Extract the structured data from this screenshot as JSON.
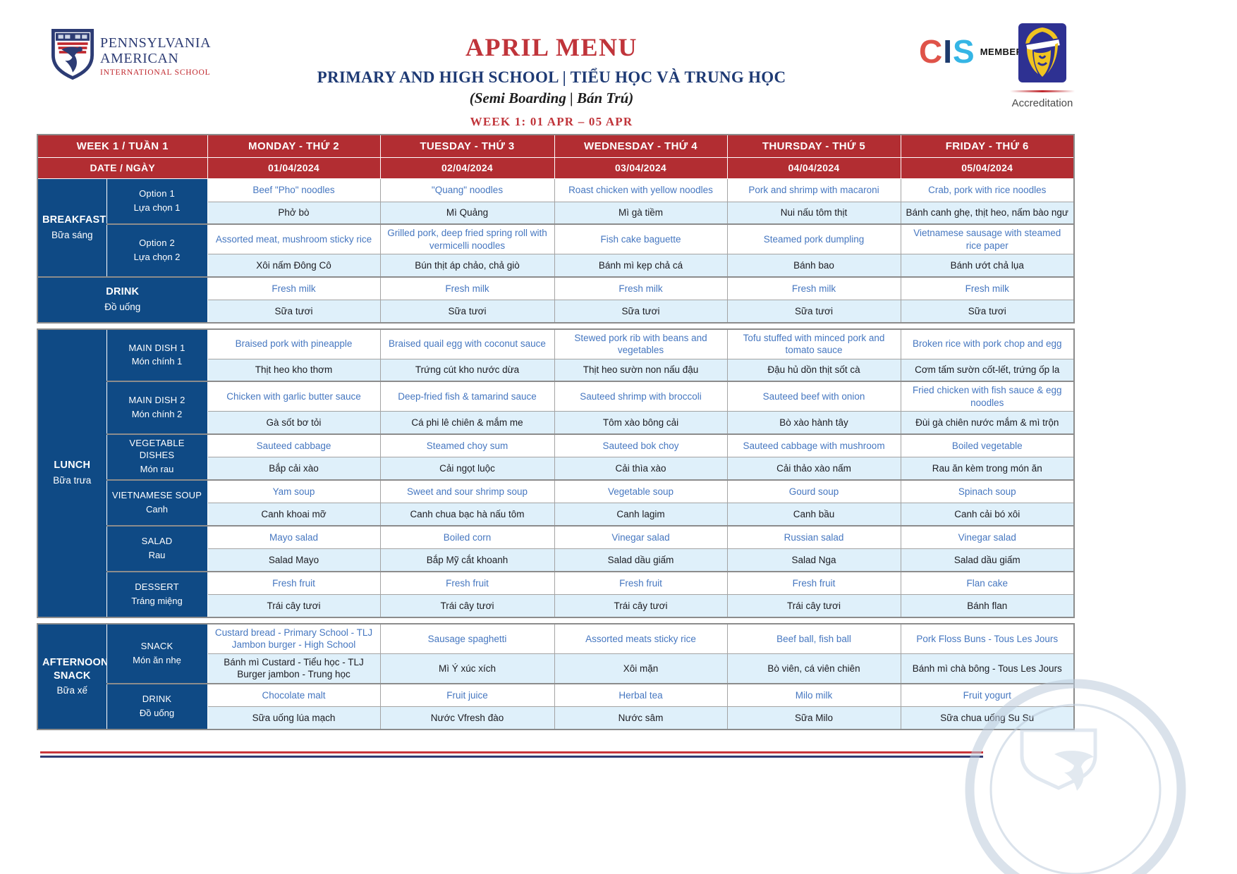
{
  "colors": {
    "red_header": "#b22d32",
    "red_title": "#c0343a",
    "navy": "#0f4a85",
    "dish_blue": "#4677c0",
    "row_bg": "#dff0fa",
    "accent_yellow": "#f1b434",
    "cis_teal": "#35b5e5",
    "cis_red": "#df5349",
    "logo_navy": "#2d3c74"
  },
  "header": {
    "school_name_line1": "PENNSYLVANIA",
    "school_name_line2": "AMERICAN",
    "school_name_line3": "INTERNATIONAL SCHOOL",
    "title": "APRIL MENU",
    "subtitle": "PRIMARY AND HIGH SCHOOL | TIỂU HỌC VÀ TRUNG HỌC",
    "boarding": "(Semi Boarding | Bán Trú)",
    "week_range": "WEEK 1: 01 APR – 05 APR",
    "cis": {
      "c": "C",
      "i": "I",
      "s": "S",
      "member": "MEMBER",
      "paren": ")"
    },
    "accreditation_label": "Accreditation"
  },
  "menu": {
    "corner": "WEEK 1 / TUẦN 1",
    "date_label": "DATE / NGÀY",
    "days": [
      "MONDAY - THỨ 2",
      "TUESDAY - THỨ 3",
      "WEDNESDAY - THỨ 4",
      "THURSDAY - THỨ 5",
      "FRIDAY - THỨ 6"
    ],
    "dates": [
      "01/04/2024",
      "02/04/2024",
      "03/04/2024",
      "04/04/2024",
      "05/04/2024"
    ],
    "blocks": [
      {
        "section_en": "BREAKFAST",
        "section_vn": "Bữa sáng",
        "groups": [
          {
            "en_label": "Option 1",
            "vn_label": "Lựa chọn 1",
            "dishes_en": [
              "Beef \"Pho\" noodles",
              "\"Quang\" noodles",
              "Roast chicken with yellow noodles",
              "Pork and shrimp with macaroni",
              "Crab, pork with rice noodles"
            ],
            "dishes_vn": [
              "Phở bò",
              "Mì Quảng",
              "Mì gà tiềm",
              "Nui nấu tôm thịt",
              "Bánh canh ghẹ, thịt heo, nấm bào ngư"
            ]
          },
          {
            "en_label": "Option 2",
            "vn_label": "Lựa chọn 2",
            "dishes_en": [
              "Assorted meat, mushroom sticky rice",
              "Grilled pork, deep fried spring roll with vermicelli noodles",
              "Fish cake baguette",
              "Steamed pork dumpling",
              "Vietnamese sausage with steamed rice paper"
            ],
            "dishes_vn": [
              "Xôi nấm Đông Cô",
              "Bún thịt áp chảo, chả giò",
              "Bánh mì kẹp chả cá",
              "Bánh bao",
              "Bánh ướt chả lụa"
            ]
          }
        ],
        "full_groups": [
          {
            "en_label": "DRINK",
            "vn_label": "Đồ uống",
            "dishes_en": [
              "Fresh milk",
              "Fresh milk",
              "Fresh milk",
              "Fresh milk",
              "Fresh milk"
            ],
            "dishes_vn": [
              "Sữa tươi",
              "Sữa tươi",
              "Sữa tươi",
              "Sữa tươi",
              "Sữa tươi"
            ]
          }
        ]
      },
      {
        "section_en": "LUNCH",
        "section_vn": "Bữa trưa",
        "groups": [
          {
            "en_label": "MAIN DISH 1",
            "vn_label": "Món chính 1",
            "dishes_en": [
              "Braised pork with pineapple",
              "Braised quail egg with coconut sauce",
              "Stewed pork rib with beans and vegetables",
              "Tofu stuffed with minced pork and tomato sauce",
              "Broken rice with pork chop and egg"
            ],
            "dishes_vn": [
              "Thịt heo kho thơm",
              "Trứng cút kho nước dừa",
              "Thịt heo sườn non nấu đậu",
              "Đậu hủ dồn thịt sốt cà",
              "Cơm tấm sườn cốt-lết, trứng ốp la"
            ]
          },
          {
            "en_label": "MAIN DISH 2",
            "vn_label": "Món chính 2",
            "dishes_en": [
              "Chicken with garlic butter sauce",
              "Deep-fried fish & tamarind sauce",
              "Sauteed shrimp with broccoli",
              "Sauteed beef with onion",
              "Fried chicken with fish sauce & egg noodles"
            ],
            "dishes_vn": [
              "Gà sốt bơ tỏi",
              "Cá phi lê chiên & mắm me",
              "Tôm xào bông cải",
              "Bò xào hành tây",
              "Đùi gà chiên nước mắm & mì trộn"
            ]
          },
          {
            "en_label": "VEGETABLE DISHES",
            "vn_label": "Món rau",
            "dishes_en": [
              "Sauteed cabbage",
              "Steamed choy sum",
              "Sauteed bok choy",
              "Sauteed cabbage with mushroom",
              "Boiled vegetable"
            ],
            "dishes_vn": [
              "Bắp cải xào",
              "Cải ngọt luộc",
              "Cải thìa xào",
              "Cải thảo xào nấm",
              "Rau ăn kèm trong món ăn"
            ]
          },
          {
            "en_label": "VIETNAMESE SOUP",
            "vn_label": "Canh",
            "dishes_en": [
              "Yam soup",
              "Sweet and sour shrimp soup",
              "Vegetable soup",
              "Gourd soup",
              "Spinach soup"
            ],
            "dishes_vn": [
              "Canh khoai mỡ",
              "Canh chua bạc hà nấu tôm",
              "Canh lagim",
              "Canh bầu",
              "Canh cải bó xôi"
            ]
          },
          {
            "en_label": "SALAD",
            "vn_label": "Rau",
            "dishes_en": [
              "Mayo salad",
              "Boiled corn",
              "Vinegar salad",
              "Russian salad",
              "Vinegar salad"
            ],
            "dishes_vn": [
              "Salad Mayo",
              "Bắp Mỹ cắt khoanh",
              "Salad dầu giấm",
              "Salad Nga",
              "Salad dầu giấm"
            ]
          },
          {
            "en_label": "DESSERT",
            "vn_label": "Tráng miệng",
            "dishes_en": [
              "Fresh fruit",
              "Fresh fruit",
              "Fresh fruit",
              "Fresh fruit",
              "Flan cake"
            ],
            "dishes_vn": [
              "Trái cây tươi",
              "Trái cây tươi",
              "Trái cây tươi",
              "Trái cây tươi",
              "Bánh flan"
            ]
          }
        ],
        "full_groups": []
      },
      {
        "section_en": "AFTERNOON SNACK",
        "section_vn": "Bữa xế",
        "groups": [
          {
            "en_label": "SNACK",
            "vn_label": "Món ăn nhẹ",
            "dishes_en": [
              "Custard bread - Primary School - TLJ\nJambon burger - High School",
              "Sausage spaghetti",
              "Assorted meats sticky rice",
              "Beef ball, fish ball",
              "Pork Floss Buns - Tous Les Jours"
            ],
            "dishes_vn": [
              "Bánh mì Custard - Tiểu học - TLJ\nBurger jambon - Trung học",
              "Mì Ý xúc xích",
              "Xôi mặn",
              "Bò viên, cá viên chiên",
              "Bánh mì chà bông - Tous Les Jours"
            ]
          },
          {
            "en_label": "DRINK",
            "vn_label": "Đồ uống",
            "dishes_en": [
              "Chocolate malt",
              "Fruit juice",
              "Herbal tea",
              "Milo milk",
              "Fruit yogurt"
            ],
            "dishes_vn": [
              "Sữa uống lúa mạch",
              "Nước Vfresh đào",
              "Nước sâm",
              "Sữa Milo",
              "Sữa chua uống Su Su"
            ]
          }
        ],
        "full_groups": []
      }
    ]
  }
}
